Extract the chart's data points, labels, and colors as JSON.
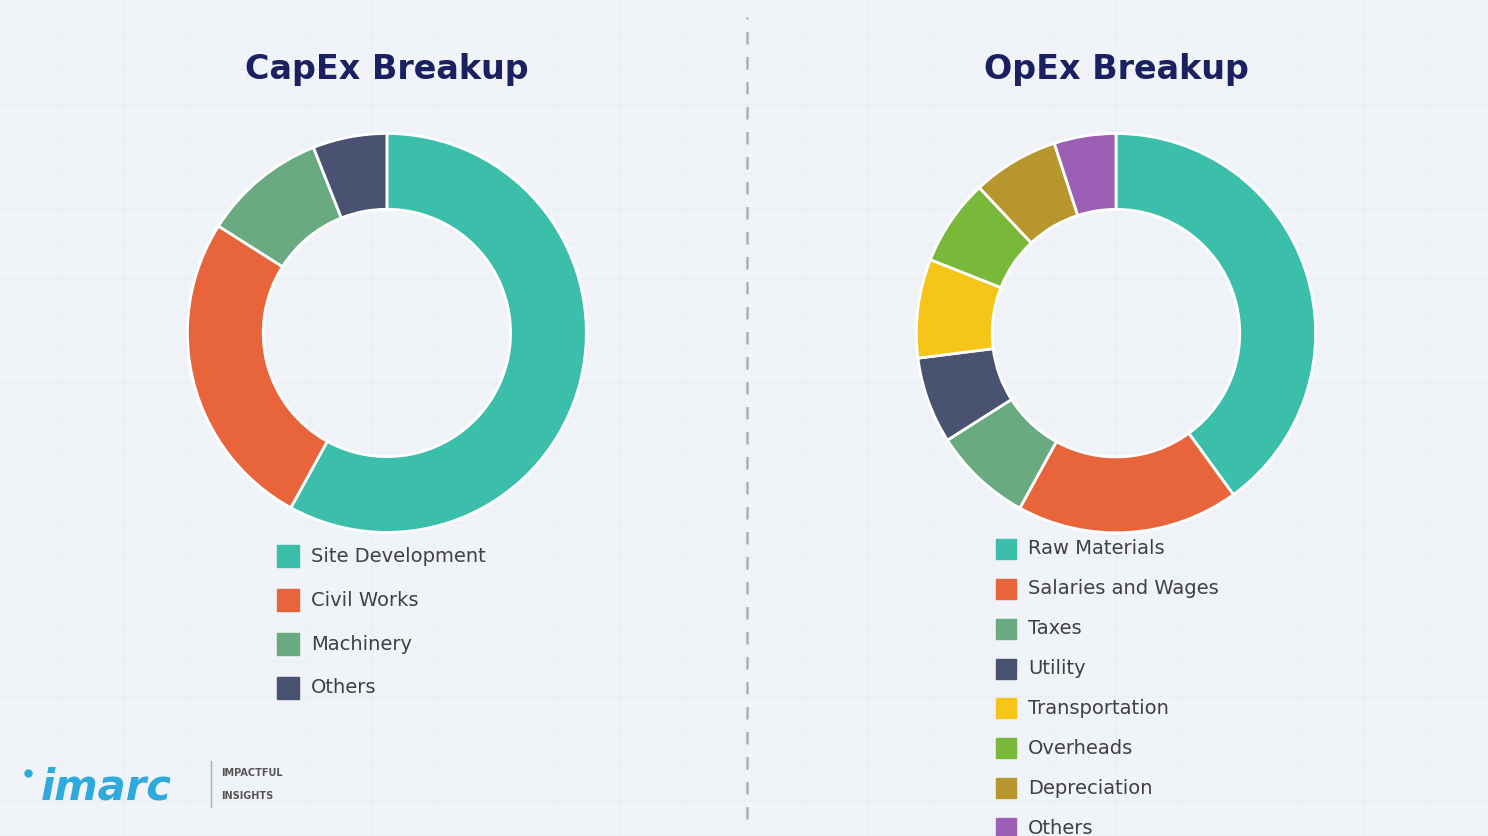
{
  "capex_title": "CapEx Breakup",
  "opex_title": "OpEx Breakup",
  "capex_labels": [
    "Site Development",
    "Civil Works",
    "Machinery",
    "Others"
  ],
  "capex_values": [
    58,
    26,
    10,
    6
  ],
  "capex_colors": [
    "#3bbfaa",
    "#e8643a",
    "#6aaa80",
    "#4a5272"
  ],
  "opex_labels": [
    "Raw Materials",
    "Salaries and Wages",
    "Taxes",
    "Utility",
    "Transportation",
    "Overheads",
    "Depreciation",
    "Others"
  ],
  "opex_values": [
    40,
    18,
    8,
    7,
    8,
    7,
    7,
    5
  ],
  "opex_colors": [
    "#3bbfaa",
    "#e8643a",
    "#6aaa80",
    "#4a5272",
    "#f5c518",
    "#7ab83a",
    "#b8962e",
    "#9b5fb5"
  ],
  "bg_color": "#f0f3f7",
  "title_color": "#1a2060",
  "legend_text_color": "#404040",
  "dashed_line_color": "#999999",
  "donut_width": 0.38,
  "wedge_edge_color": "white",
  "wedge_edge_width": 2.0,
  "legend_fontsize": 14,
  "title_fontsize": 24
}
